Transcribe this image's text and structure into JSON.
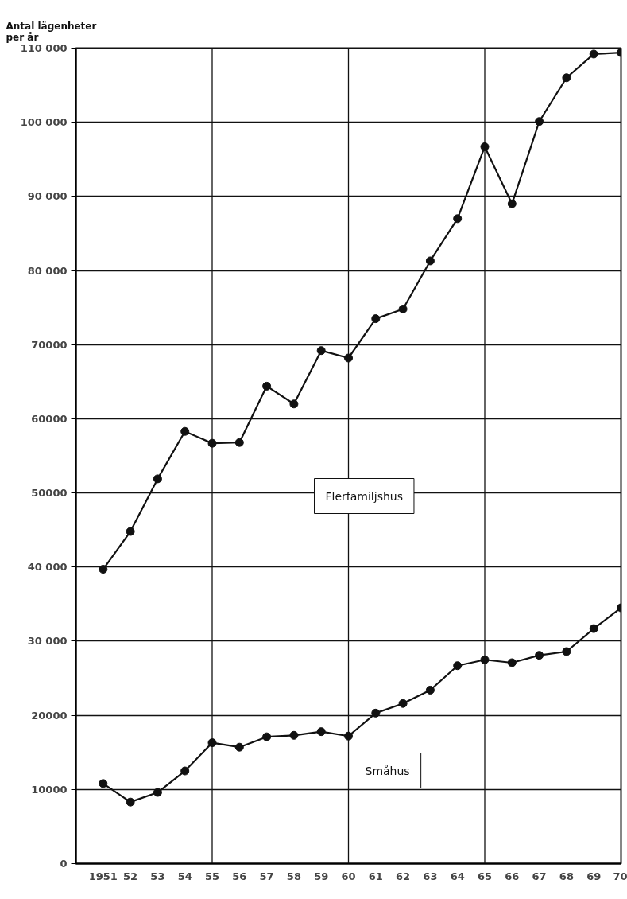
{
  "chart_data": {
    "type": "line",
    "ylabel": "Antal lägenheter\nper år",
    "x": [
      1951,
      1952,
      1953,
      1954,
      1955,
      1956,
      1957,
      1958,
      1959,
      1960,
      1961,
      1962,
      1963,
      1964,
      1965,
      1966,
      1967,
      1968,
      1969,
      1970
    ],
    "series": [
      {
        "name": "Flerfamiljshus",
        "color": "#111111",
        "values": [
          39700,
          44800,
          51900,
          58300,
          56700,
          56800,
          64400,
          62000,
          69200,
          68200,
          73500,
          74800,
          81300,
          87000,
          96700,
          89000,
          100100,
          106000,
          109200,
          109400
        ]
      },
      {
        "name": "Småhus",
        "color": "#111111",
        "values": [
          10800,
          8300,
          9600,
          12500,
          16300,
          15700,
          17100,
          17300,
          17800,
          17200,
          20300,
          21600,
          23400,
          26700,
          27500,
          27100,
          28100,
          28600,
          31700,
          34500
        ]
      }
    ],
    "xlim": [
      1950,
      1970
    ],
    "xticks": [
      {
        "value": 1950,
        "label": null
      },
      {
        "value": 1951,
        "label": "1951"
      },
      {
        "value": 1952,
        "label": "52"
      },
      {
        "value": 1953,
        "label": "53"
      },
      {
        "value": 1954,
        "label": "54"
      },
      {
        "value": 1955,
        "label": "55"
      },
      {
        "value": 1956,
        "label": "56"
      },
      {
        "value": 1957,
        "label": "57"
      },
      {
        "value": 1958,
        "label": "58"
      },
      {
        "value": 1959,
        "label": "59"
      },
      {
        "value": 1960,
        "label": "60"
      },
      {
        "value": 1961,
        "label": "61"
      },
      {
        "value": 1962,
        "label": "62"
      },
      {
        "value": 1963,
        "label": "63"
      },
      {
        "value": 1964,
        "label": "64"
      },
      {
        "value": 1965,
        "label": "65"
      },
      {
        "value": 1966,
        "label": "66"
      },
      {
        "value": 1967,
        "label": "67"
      },
      {
        "value": 1968,
        "label": "68"
      },
      {
        "value": 1969,
        "label": "69"
      },
      {
        "value": 1970,
        "label": "70"
      }
    ],
    "ylim": [
      0,
      110000
    ],
    "yticks": [
      0,
      {
        "value": 10000,
        "label": "10000"
      },
      {
        "value": 20000,
        "label": "20000"
      },
      {
        "value": 30000,
        "label": "30 000"
      },
      {
        "value": 40000,
        "label": "40 000"
      },
      {
        "value": 50000,
        "label": "50000"
      },
      {
        "value": 60000,
        "label": "60000"
      },
      {
        "value": 70000,
        "label": "70000"
      },
      {
        "value": 80000,
        "label": "80 000"
      },
      {
        "value": 90000,
        "label": "90 000"
      },
      {
        "value": 100000,
        "label": "100 000"
      },
      {
        "value": 110000,
        "label": "110 000"
      }
    ],
    "ref_lines": [
      {
        "axis": "x",
        "value": 1955,
        "label": null
      },
      {
        "axis": "x",
        "value": 1960,
        "label": null
      },
      {
        "axis": "x",
        "value": 1965,
        "label": null
      }
    ],
    "grid": "y",
    "marker": "circle",
    "line_style": "solid",
    "legend": false
  }
}
